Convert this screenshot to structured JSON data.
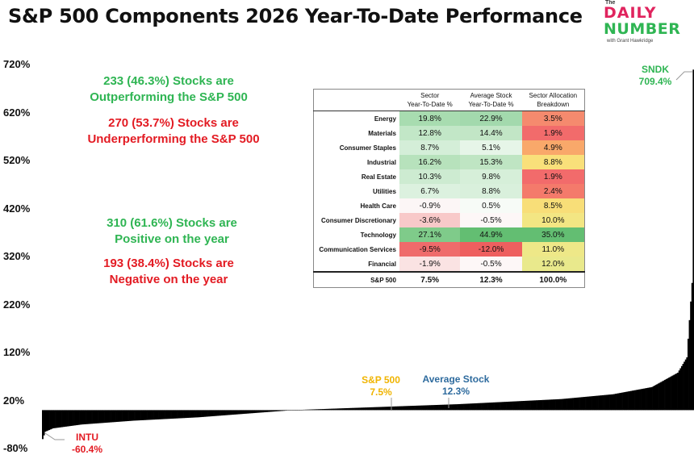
{
  "title": "S&P 500 Components 2026 Year-To-Date Performance",
  "logo": {
    "the": "The",
    "daily": "DAILY",
    "number": "NUMBER",
    "with": "with Grant Hawkridge"
  },
  "callouts": {
    "outperform_1": "233 (46.3%) Stocks are",
    "outperform_2": "Outperforming the S&P 500",
    "underperform_1": "270 (53.7%) Stocks are",
    "underperform_2": "Underperforming the S&P 500",
    "positive_1": "310 (61.6%) Stocks are",
    "positive_2": "Positive on the year",
    "negative_1": "193 (38.4%) Stocks are",
    "negative_2": "Negative on the year"
  },
  "labels": {
    "sndk_name": "SNDK",
    "sndk_value": "709.4%",
    "intu_name": "INTU",
    "intu_value": "-60.4%",
    "spx_name": "S&P 500",
    "spx_value": "7.5%",
    "avg_name": "Average Stock",
    "avg_value": "12.3%"
  },
  "colors": {
    "green": "#2fb553",
    "red": "#e31b23",
    "gold": "#f0b400",
    "blue": "#2e6b9e",
    "bars": "#000000"
  },
  "table": {
    "headers": [
      "Sector Year-To-Date %",
      "Average Stock Year-To-Date %",
      "Sector Allocation Breakdown"
    ],
    "header_lines": [
      [
        "Sector",
        "Year-To-Date %"
      ],
      [
        "Average Stock",
        "Year-To-Date %"
      ],
      [
        "Sector Allocation",
        "Breakdown"
      ]
    ],
    "rows": [
      {
        "name": "Energy",
        "sector": "19.8%",
        "avg": "22.9%",
        "alloc": "3.5%",
        "sector_bg": "#a8dcb0",
        "avg_bg": "#a3d9ad",
        "alloc_bg": "#f58a6e"
      },
      {
        "name": "Materials",
        "sector": "12.8%",
        "avg": "14.4%",
        "alloc": "1.9%",
        "sector_bg": "#c2e7c7",
        "avg_bg": "#c2e6c6",
        "alloc_bg": "#f26b6b"
      },
      {
        "name": "Consumer Staples",
        "sector": "8.7%",
        "avg": "5.1%",
        "alloc": "4.9%",
        "sector_bg": "#d4eed8",
        "avg_bg": "#e6f5e8",
        "alloc_bg": "#f9a86a"
      },
      {
        "name": "Industrial",
        "sector": "16.2%",
        "avg": "15.3%",
        "alloc": "8.8%",
        "sector_bg": "#b7e2bc",
        "avg_bg": "#bfe5c3",
        "alloc_bg": "#f9e07a"
      },
      {
        "name": "Real Estate",
        "sector": "10.3%",
        "avg": "9.8%",
        "alloc": "1.9%",
        "sector_bg": "#cdebd1",
        "avg_bg": "#d6efd9",
        "alloc_bg": "#f26b6b"
      },
      {
        "name": "Utilities",
        "sector": "6.7%",
        "avg": "8.8%",
        "alloc": "2.4%",
        "sector_bg": "#dcf1df",
        "avg_bg": "#d9f0dc",
        "alloc_bg": "#f47a6b"
      },
      {
        "name": "Health Care",
        "sector": "-0.9%",
        "avg": "0.5%",
        "alloc": "8.5%",
        "sector_bg": "#fcf6f6",
        "avg_bg": "#f7fbf7",
        "alloc_bg": "#f8de78"
      },
      {
        "name": "Consumer Discretionary",
        "sector": "-3.6%",
        "avg": "-0.5%",
        "alloc": "10.0%",
        "sector_bg": "#f8c9c9",
        "avg_bg": "#fdf7f7",
        "alloc_bg": "#f3e683"
      },
      {
        "name": "Technology",
        "sector": "27.1%",
        "avg": "44.9%",
        "alloc": "35.0%",
        "sector_bg": "#7fcb8a",
        "avg_bg": "#63be72",
        "alloc_bg": "#63be72"
      },
      {
        "name": "Communication Services",
        "sector": "-9.5%",
        "avg": "-12.0%",
        "alloc": "11.0%",
        "sector_bg": "#ef6b6b",
        "avg_bg": "#ee5f5f",
        "alloc_bg": "#eee888"
      },
      {
        "name": "Financial",
        "sector": "-1.9%",
        "avg": "-0.5%",
        "alloc": "12.0%",
        "sector_bg": "#fae3e3",
        "avg_bg": "#fdf7f7",
        "alloc_bg": "#e9e98c"
      }
    ],
    "total": {
      "name": "S&P 500",
      "sector": "7.5%",
      "avg": "12.3%",
      "alloc": "100.0%"
    }
  },
  "chart_data": {
    "type": "bar",
    "title": "S&P 500 Components 2026 Year-To-Date Performance",
    "ylim": [
      -80,
      720
    ],
    "yticks": [
      "720%",
      "620%",
      "520%",
      "420%",
      "320%",
      "220%",
      "120%",
      "20%",
      "-80%"
    ],
    "ytick_values": [
      720,
      620,
      520,
      420,
      320,
      220,
      120,
      20,
      -80
    ],
    "count": 503,
    "min": -60.4,
    "max": 709.4,
    "sp500": 7.5,
    "average": 12.3,
    "grid": false,
    "profile": [
      {
        "rank": 0,
        "value": -60.4
      },
      {
        "rank": 2,
        "value": -45
      },
      {
        "rank": 8,
        "value": -38
      },
      {
        "rank": 30,
        "value": -30
      },
      {
        "rank": 70,
        "value": -22
      },
      {
        "rank": 120,
        "value": -15
      },
      {
        "rank": 193,
        "value": 0
      },
      {
        "rank": 270,
        "value": 7.5
      },
      {
        "rank": 320,
        "value": 12.3
      },
      {
        "rank": 400,
        "value": 23
      },
      {
        "rank": 440,
        "value": 33
      },
      {
        "rank": 470,
        "value": 48
      },
      {
        "rank": 490,
        "value": 78
      },
      {
        "rank": 497,
        "value": 110
      },
      {
        "rank": 501,
        "value": 265
      },
      {
        "rank": 502,
        "value": 709.4
      }
    ]
  }
}
